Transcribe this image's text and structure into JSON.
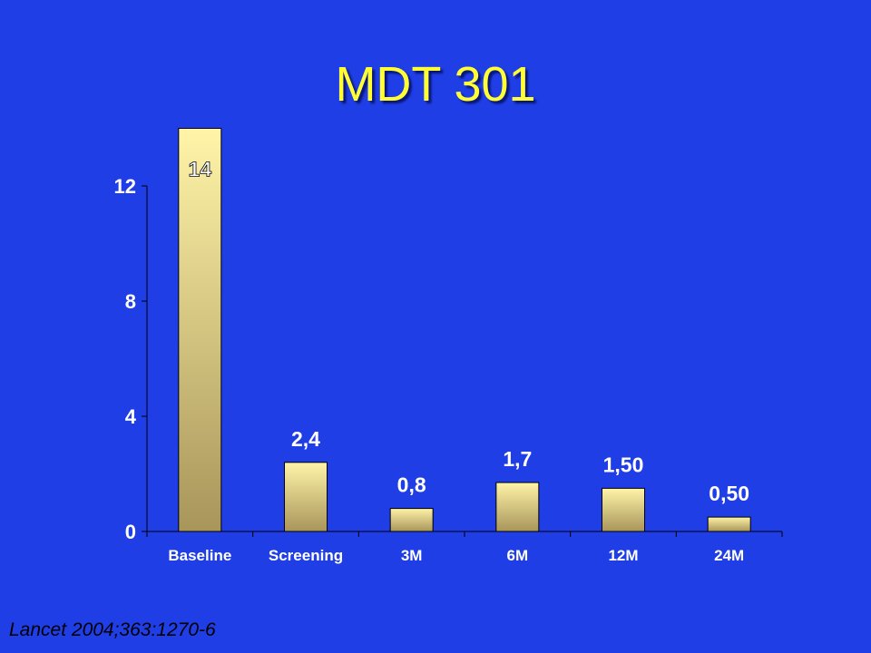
{
  "title": "MDT 301",
  "citation": "Lancet 2004;363:1270-6",
  "colors": {
    "background": "#1f3ee6",
    "title": "#ffff33",
    "bar_light": "#fff4a8",
    "bar_dark": "#a8955a",
    "axis_text": "#ffffff",
    "data_label": "#ffffff"
  },
  "chart_data": {
    "type": "bar",
    "title": "MDT 301",
    "xlabel": "",
    "ylabel": "",
    "categories": [
      "Baseline",
      "Screening",
      "3M",
      "6M",
      "12M",
      "24M"
    ],
    "values": [
      14,
      2.4,
      0.8,
      1.7,
      1.5,
      0.5
    ],
    "data_labels": [
      "14",
      "2,4",
      "0,8",
      "1,7",
      "1,50",
      "0,50"
    ],
    "yticks": [
      0,
      4,
      8,
      12
    ],
    "ytick_labels": [
      "0",
      "4",
      "8",
      "12"
    ],
    "ylim": [
      0,
      12
    ],
    "grid": false,
    "legend": "none"
  }
}
